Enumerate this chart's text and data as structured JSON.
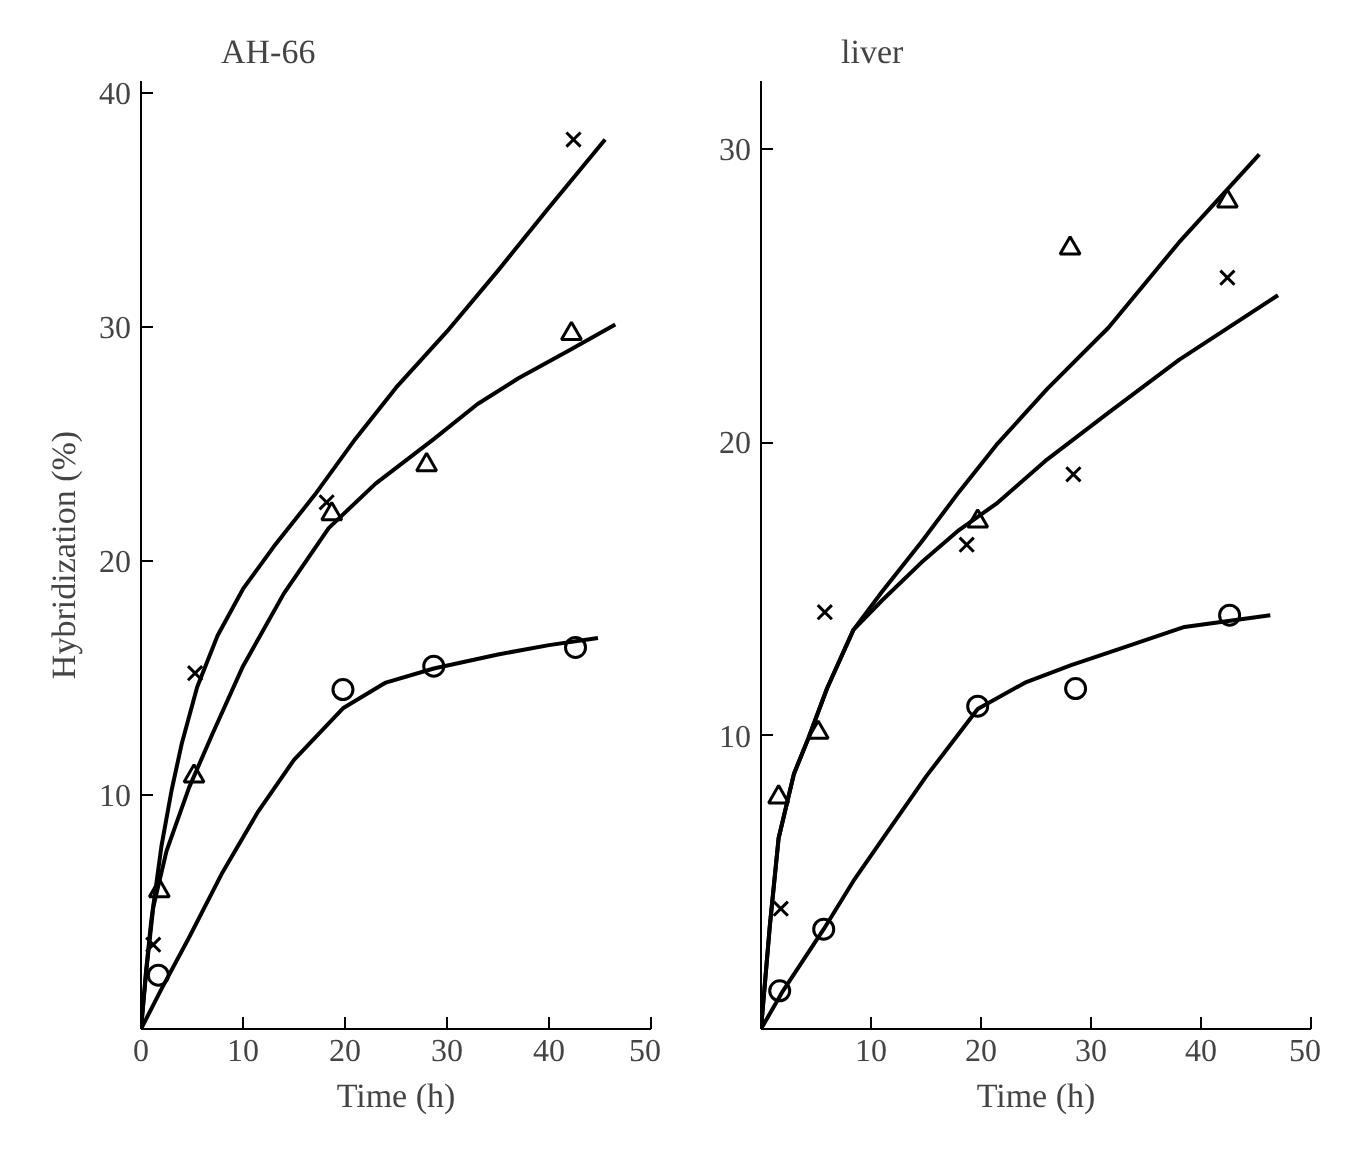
{
  "chart_data": [
    {
      "type": "scatter",
      "title": "AH-66",
      "xlabel": "Time (h)",
      "ylabel": "Hybridization (%)",
      "xlim": [
        0,
        50
      ],
      "ylim": [
        0,
        40.5
      ],
      "xticks": [
        0,
        10,
        20,
        30,
        40,
        50
      ],
      "yticks": [
        10,
        20,
        30,
        40
      ],
      "grid": false,
      "series": [
        {
          "marker": "cross",
          "color": "#000000",
          "x": [
            1.2,
            5.3,
            18.2,
            42.4
          ],
          "values": [
            3.6,
            15.2,
            22.5,
            38.0
          ]
        },
        {
          "marker": "triangle",
          "color": "#000000",
          "x": [
            1.8,
            5.2,
            18.7,
            28.0,
            42.2
          ],
          "values": [
            5.9,
            10.8,
            22.0,
            24.1,
            29.7
          ]
        },
        {
          "marker": "circle",
          "color": "#000000",
          "x": [
            1.7,
            19.8,
            28.7,
            42.6
          ],
          "values": [
            2.3,
            14.5,
            15.5,
            16.3
          ]
        },
        {
          "type": "line",
          "marker": "none",
          "color": "#000000",
          "x": [
            0,
            0.5,
            1,
            2,
            3,
            4,
            5.5,
            7.5,
            10,
            13,
            17,
            21,
            25,
            30,
            35,
            40,
            45.5
          ],
          "values": [
            0,
            2.5,
            4.6,
            7.8,
            10.2,
            12.2,
            14.6,
            16.8,
            18.8,
            20.6,
            22.8,
            25.2,
            27.4,
            29.8,
            32.4,
            35.1,
            38
          ]
        },
        {
          "type": "line",
          "marker": "none",
          "color": "#000000",
          "x": [
            0,
            0.5,
            1.2,
            2.5,
            4.7,
            7,
            10,
            14,
            18.4,
            23,
            28.7,
            33,
            37,
            42,
            46.5
          ],
          "values": [
            0,
            2.4,
            5.2,
            7.6,
            10.3,
            12.6,
            15.5,
            18.6,
            21.4,
            23.3,
            25.2,
            26.7,
            27.8,
            29,
            30.1
          ]
        },
        {
          "type": "line",
          "marker": "none",
          "color": "#000000",
          "x": [
            0,
            2,
            4.7,
            8,
            11.5,
            15,
            19.8,
            24,
            28.7,
            35,
            40,
            44.8
          ],
          "values": [
            0,
            1.7,
            3.9,
            6.7,
            9.3,
            11.5,
            13.7,
            14.8,
            15.4,
            16,
            16.4,
            16.7
          ]
        }
      ]
    },
    {
      "type": "scatter",
      "title": "liver",
      "xlabel": "Time (h)",
      "xlim": [
        0,
        50
      ],
      "ylim": [
        0,
        32.3
      ],
      "xticks": [
        10,
        20,
        30,
        40,
        50
      ],
      "yticks": [
        10,
        20,
        30
      ],
      "grid": false,
      "series": [
        {
          "marker": "triangle",
          "color": "#000000",
          "x": [
            1.6,
            5.2,
            19.7,
            28.1,
            42.4
          ],
          "values": [
            7.9,
            10.1,
            17.3,
            26.6,
            28.2
          ]
        },
        {
          "marker": "cross",
          "color": "#000000",
          "x": [
            1.8,
            5.8,
            18.7,
            28.4,
            42.4
          ],
          "values": [
            4.1,
            14.2,
            16.5,
            18.9,
            25.6
          ]
        },
        {
          "marker": "circle",
          "color": "#000000",
          "x": [
            1.7,
            5.7,
            19.7,
            28.6,
            42.6
          ],
          "values": [
            1.3,
            3.4,
            11.0,
            11.6,
            14.1
          ]
        },
        {
          "type": "line",
          "marker": "none",
          "color": "#000000",
          "x": [
            0,
            0.8,
            1.6,
            3,
            4.3,
            6,
            8.4,
            11,
            14.6,
            18,
            21.4,
            26,
            31.6,
            38,
            45.3
          ],
          "values": [
            0,
            3.5,
            6.5,
            8.7,
            9.9,
            11.6,
            13.6,
            14.9,
            16.6,
            18.3,
            19.9,
            21.8,
            23.9,
            26.8,
            29.8
          ]
        },
        {
          "type": "line",
          "marker": "none",
          "color": "#000000",
          "x": [
            0,
            0.8,
            1.6,
            3,
            4.3,
            6,
            8.4,
            11,
            14.6,
            18,
            21.4,
            26,
            31.6,
            38,
            47
          ],
          "values": [
            0,
            3.5,
            6.5,
            8.7,
            9.9,
            11.6,
            13.6,
            14.6,
            15.9,
            17,
            17.9,
            19.4,
            21,
            22.8,
            25
          ]
        },
        {
          "type": "line",
          "marker": "none",
          "color": "#000000",
          "x": [
            0,
            2,
            5.7,
            8.5,
            11.1,
            15,
            19.7,
            24,
            28.2,
            33,
            38.5,
            46.3
          ],
          "values": [
            0,
            1.3,
            3.4,
            5.1,
            6.5,
            8.6,
            10.9,
            11.8,
            12.4,
            13,
            13.7,
            14.1
          ]
        }
      ]
    }
  ]
}
